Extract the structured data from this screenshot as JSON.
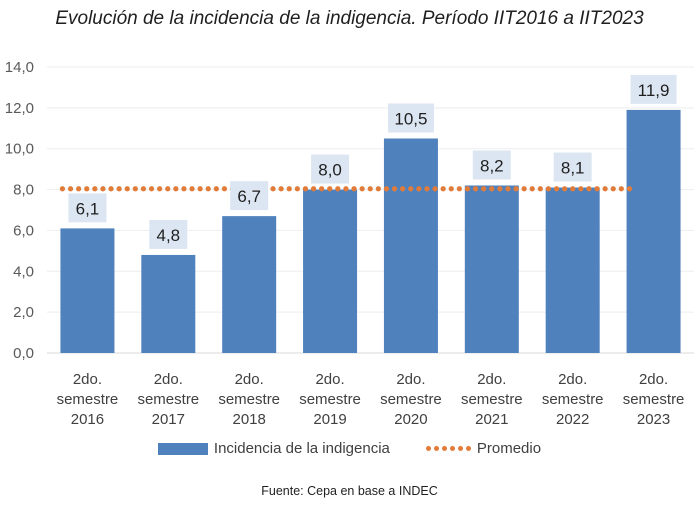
{
  "chart_data": {
    "type": "bar",
    "title": "Evolución de la incidencia de la indigencia. Período IIT2016 a IIT2023",
    "categories": [
      [
        "2do.",
        "semestre",
        "2016"
      ],
      [
        "2do.",
        "semestre",
        "2017"
      ],
      [
        "2do.",
        "semestre",
        "2018"
      ],
      [
        "2do.",
        "semestre",
        "2019"
      ],
      [
        "2do.",
        "semestre",
        "2020"
      ],
      [
        "2do.",
        "semestre",
        "2021"
      ],
      [
        "2do.",
        "semestre",
        "2022"
      ],
      [
        "2do.",
        "semestre",
        "2023"
      ]
    ],
    "series": [
      {
        "name": "Incidencia de la indigencia",
        "type": "bar",
        "color": "#4f81bd",
        "values": [
          6.1,
          4.8,
          6.7,
          8.0,
          10.5,
          8.2,
          8.1,
          11.9
        ],
        "labels": [
          "6,1",
          "4,8",
          "6,7",
          "8,0",
          "10,5",
          "8,2",
          "8,1",
          "11,9"
        ]
      },
      {
        "name": "Promedio",
        "type": "line",
        "style": "dotted",
        "color": "#e07b39",
        "values": [
          8.04,
          8.04,
          8.04,
          8.04,
          8.04,
          8.04,
          8.04,
          8.04
        ]
      }
    ],
    "ylim": [
      0,
      14
    ],
    "yticks": [
      0,
      2,
      4,
      6,
      8,
      10,
      12,
      14
    ],
    "ytick_labels": [
      "0,0",
      "2,0",
      "4,0",
      "6,0",
      "8,0",
      "10,0",
      "12,0",
      "14,0"
    ],
    "xlabel": "",
    "ylabel": "",
    "grid": true,
    "legend_position": "bottom",
    "data_label_background": "#dce6f2"
  },
  "source": "Fuente: Cepa en base a INDEC"
}
